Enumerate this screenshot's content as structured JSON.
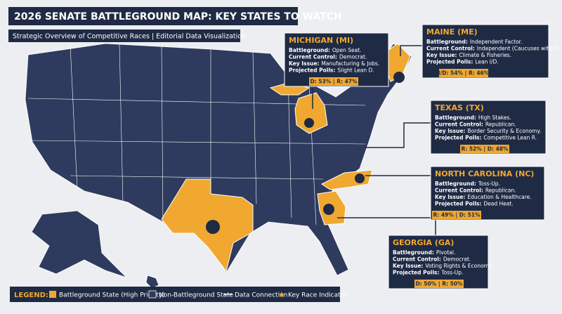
{
  "header": {
    "title": "2026 SENATE BATTLEGROUND MAP: KEY STATES TO WATCH",
    "subtitle": "Strategic Overview of Competitive Races | Editorial Data Visualization"
  },
  "states": [
    {
      "name": "MICHIGAN (MI)",
      "details": [
        {
          "label": "Battleground:",
          "text": "Open Seat."
        },
        {
          "label": "Current Control:",
          "text": "Democrat."
        },
        {
          "label": "Key Issue:",
          "text": "Manufacturing & Jobs."
        },
        {
          "label": "Projected Polls:",
          "text": "Slight Lean D."
        }
      ],
      "polls": "D: 53% | R: 47%"
    },
    {
      "name": "MAINE (ME)",
      "details": [
        {
          "label": "Battleground:",
          "text": "Independent Factor."
        },
        {
          "label": "Current Control:",
          "text": "Independent (Caucuses with D)."
        },
        {
          "label": "Key Issue:",
          "text": "Climate & Fisheries."
        },
        {
          "label": "Projected Polls:",
          "text": "Lean I/D."
        }
      ],
      "polls": "I/D: 54% | R: 46%"
    },
    {
      "name": "TEXAS (TX)",
      "details": [
        {
          "label": "Battleground:",
          "text": "High Stakes."
        },
        {
          "label": "Current Control:",
          "text": "Republican."
        },
        {
          "label": "Key Issue:",
          "text": "Border Security & Economy."
        },
        {
          "label": "Projected Polls:",
          "text": "Competitive Lean R."
        }
      ],
      "polls": "R: 52% | D: 48%"
    },
    {
      "name": "NORTH CAROLINA (NC)",
      "details": [
        {
          "label": "Battleground:",
          "text": "Toss-Up."
        },
        {
          "label": "Current Control:",
          "text": "Republican."
        },
        {
          "label": "Key Issue:",
          "text": "Education & Healthcare."
        },
        {
          "label": "Projected Polls:",
          "text": "Dead Heat."
        }
      ],
      "polls": "R: 49% | D: 51%"
    },
    {
      "name": "GEORGIA (GA)",
      "details": [
        {
          "label": "Battleground:",
          "text": "Pivotal."
        },
        {
          "label": "Current Control:",
          "text": "Democrat."
        },
        {
          "label": "Key Issue:",
          "text": "Voting Rights & Economy."
        },
        {
          "label": "Projected Polls:",
          "text": "Toss-Up."
        }
      ],
      "polls": "D: 50% | R: 50%"
    }
  ],
  "legend": {
    "title": "LEGEND:",
    "items": [
      "Battleground State (High Priority)",
      "Non-Battleground State",
      "Data Connection",
      "Key Race Indicator"
    ]
  }
}
